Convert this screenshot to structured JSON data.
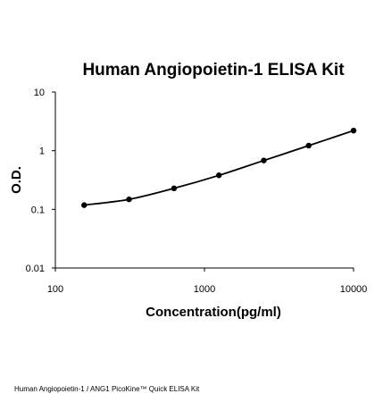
{
  "page": {
    "footer_caption": "Human Angiopoietin-1 / ANG1 PicoKine™ Quick ELISA Kit"
  },
  "chart_data": {
    "type": "line",
    "title": "Human Angiopoietin-1 ELISA Kit",
    "xlabel": "Concentration(pg/ml)",
    "ylabel": "O.D.",
    "x_scale": "log",
    "y_scale": "log",
    "xlim": [
      100,
      10000
    ],
    "ylim": [
      0.01,
      10
    ],
    "x_ticks": [
      "100",
      "1000",
      "10000"
    ],
    "y_ticks": [
      "0.01",
      "0.1",
      "1",
      "10"
    ],
    "grid": false,
    "legend": "none",
    "line_color": "#000000",
    "series": [
      {
        "x": [
          156,
          312,
          625,
          1250,
          2500,
          5000,
          10000
        ],
        "y": [
          0.118,
          0.148,
          0.228,
          0.38,
          0.68,
          1.22,
          2.2
        ]
      }
    ]
  }
}
